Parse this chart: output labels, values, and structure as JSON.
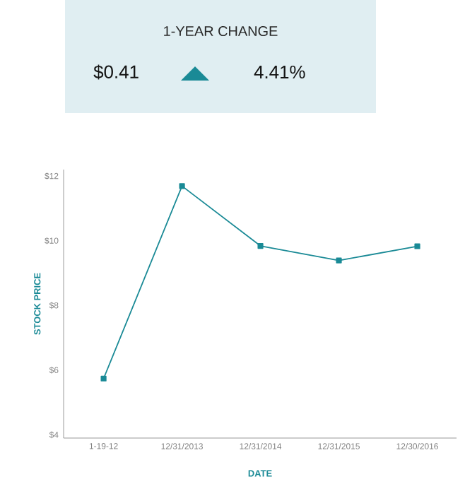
{
  "chart_data": {
    "type": "line",
    "title": "1-YEAR CHANGE",
    "annotations": [
      "$0.41",
      "4.41%"
    ],
    "xlabel": "DATE",
    "ylabel": "STOCK PRICE",
    "categories": [
      "1-19-12",
      "12/31/2013",
      "12/31/2014",
      "12/31/2015",
      "12/30/2016"
    ],
    "series": [
      {
        "color": "#1a8a96",
        "values": [
          5.74,
          11.69,
          9.84,
          9.39,
          9.83
        ]
      }
    ],
    "ylim": [
      3.9,
      12.2
    ],
    "yticks": [
      {
        "value": 4,
        "label": "$4"
      },
      {
        "value": 6,
        "label": "$6"
      },
      {
        "value": 8,
        "label": "$8"
      },
      {
        "value": 10,
        "label": "$10"
      },
      {
        "value": 12,
        "label": "$12"
      }
    ],
    "marker": "square",
    "line_style": "solid"
  }
}
